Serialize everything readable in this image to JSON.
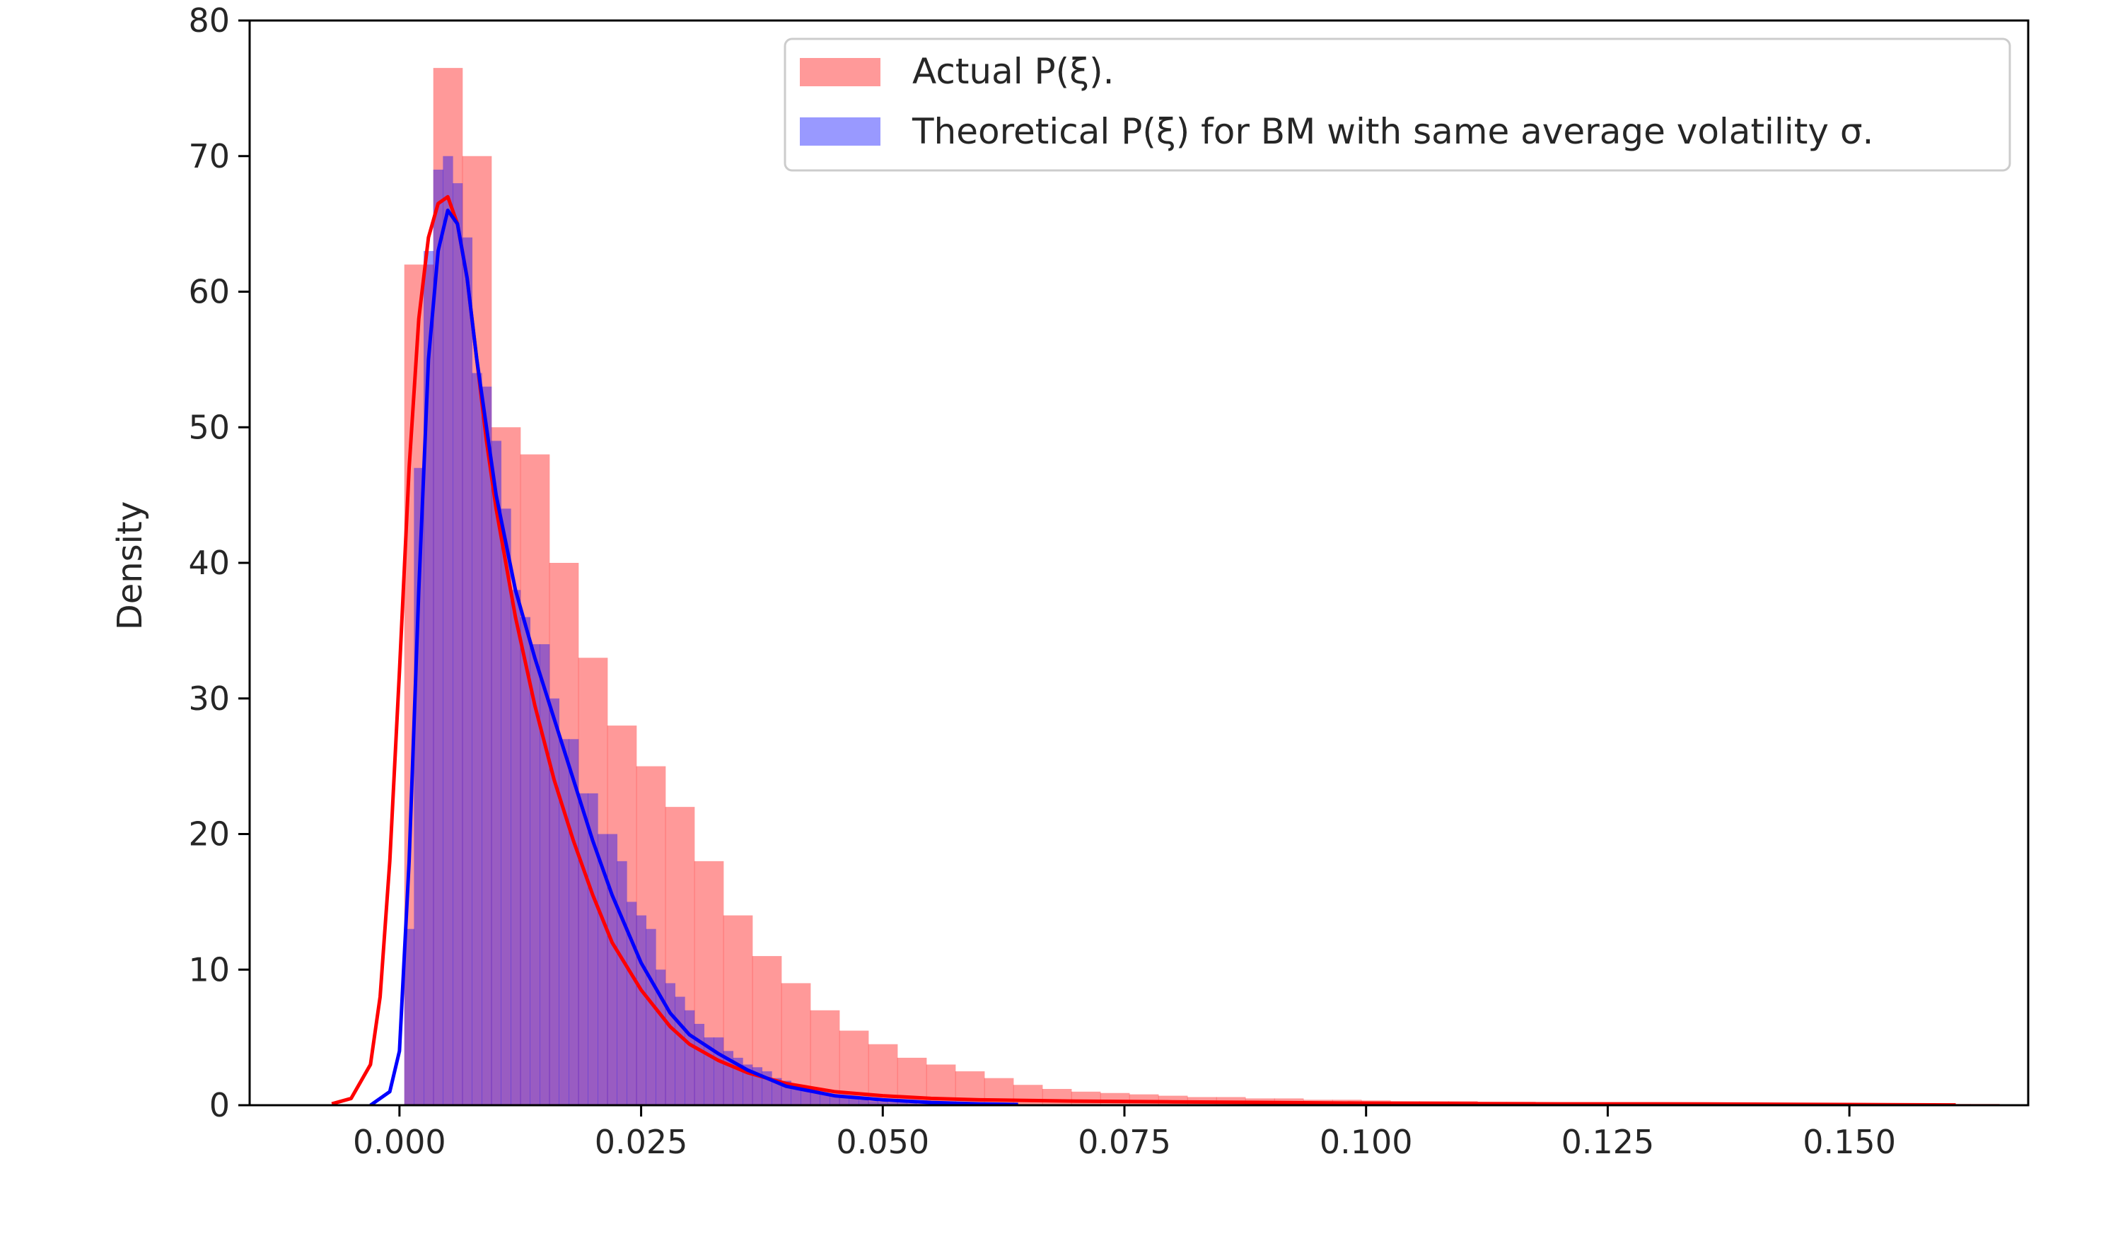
{
  "chart_data": {
    "type": "histogram",
    "title": "",
    "xlabel": "",
    "ylabel": "Density",
    "xlim": [
      -0.0155,
      0.1685
    ],
    "ylim": [
      0,
      80
    ],
    "xticks": [
      0.0,
      0.025,
      0.05,
      0.075,
      0.1,
      0.125,
      0.15
    ],
    "xtick_labels": [
      "0.000",
      "0.025",
      "0.050",
      "0.075",
      "0.100",
      "0.125",
      "0.150"
    ],
    "yticks": [
      0,
      10,
      20,
      30,
      40,
      50,
      60,
      70,
      80
    ],
    "ytick_labels": [
      "0",
      "10",
      "20",
      "30",
      "40",
      "50",
      "60",
      "70",
      "80"
    ],
    "legend": {
      "placement": "top-right",
      "entries": [
        "Actual P(ξ).",
        "Theoretical P(ξ) for BM with same average volatility σ."
      ]
    },
    "series": [
      {
        "name": "Actual P(ξ).",
        "color": "#ff0000",
        "bin_width": 0.003,
        "bin_start": 0.0005,
        "hist": [
          62,
          76.5,
          70,
          50,
          48,
          40,
          33,
          28,
          25,
          22,
          18,
          14,
          11,
          9,
          7,
          5.5,
          4.5,
          3.5,
          3,
          2.5,
          2,
          1.5,
          1.2,
          1,
          0.9,
          0.8,
          0.7,
          0.6,
          0.6,
          0.5,
          0.5,
          0.4,
          0.4,
          0.35,
          0.3,
          0.3,
          0.3,
          0.25,
          0.25,
          0.2,
          0.2,
          0.2,
          0.2,
          0.2,
          0.15,
          0.15,
          0.15,
          0.15,
          0.15,
          0.1,
          0.1,
          0.1,
          0.1,
          0.1,
          0.1
        ],
        "kde_x": [
          -0.007,
          -0.005,
          -0.003,
          -0.002,
          -0.001,
          0.0,
          0.001,
          0.002,
          0.003,
          0.004,
          0.005,
          0.006,
          0.007,
          0.008,
          0.009,
          0.01,
          0.012,
          0.014,
          0.016,
          0.018,
          0.02,
          0.022,
          0.025,
          0.028,
          0.03,
          0.033,
          0.036,
          0.04,
          0.045,
          0.05,
          0.055,
          0.06,
          0.07,
          0.08,
          0.09,
          0.1,
          0.11,
          0.12,
          0.13,
          0.14,
          0.15,
          0.161
        ],
        "kde_y": [
          0.1,
          0.5,
          3,
          8,
          18,
          32,
          47,
          58,
          64,
          66.5,
          67,
          65,
          61,
          55,
          49,
          44,
          36,
          29.5,
          24,
          19.5,
          15.5,
          12,
          8.5,
          5.8,
          4.5,
          3.3,
          2.4,
          1.6,
          1.0,
          0.7,
          0.5,
          0.4,
          0.3,
          0.25,
          0.2,
          0.15,
          0.12,
          0.1,
          0.1,
          0.08,
          0.05,
          0.02
        ]
      },
      {
        "name": "Theoretical P(ξ) for BM with same average volatility σ.",
        "color": "#0000ff",
        "bin_width": 0.001,
        "bin_start": 0.0005,
        "hist": [
          13,
          47,
          63,
          69,
          70,
          68,
          64,
          54,
          53,
          49,
          44,
          38,
          36,
          34,
          34,
          30,
          27,
          27,
          23,
          23,
          20,
          20,
          18,
          15,
          14,
          13,
          10,
          9,
          8,
          7,
          6,
          5,
          5,
          4,
          3.5,
          3,
          2.8,
          2.5,
          2,
          1.8,
          1.5,
          1.2,
          1.0,
          0.8,
          0.7,
          0.6,
          0.5,
          0.4,
          0.3,
          0.25,
          0.2,
          0.2,
          0.15,
          0.1,
          0.1,
          0.1,
          0.05,
          0.05,
          0.05,
          0.05,
          0.05,
          0.05,
          0.05
        ],
        "kde_x": [
          -0.003,
          -0.001,
          0.0,
          0.001,
          0.002,
          0.003,
          0.004,
          0.005,
          0.006,
          0.007,
          0.008,
          0.009,
          0.01,
          0.012,
          0.014,
          0.016,
          0.018,
          0.02,
          0.022,
          0.025,
          0.028,
          0.03,
          0.033,
          0.036,
          0.04,
          0.045,
          0.05,
          0.055,
          0.06,
          0.064
        ],
        "kde_y": [
          0,
          1,
          4,
          18,
          38,
          55,
          63,
          66,
          65,
          61,
          55,
          50,
          45,
          38,
          33,
          28.5,
          24,
          19.5,
          15.5,
          10.5,
          6.8,
          5.2,
          3.8,
          2.6,
          1.4,
          0.7,
          0.4,
          0.2,
          0.1,
          0.05
        ]
      }
    ]
  }
}
